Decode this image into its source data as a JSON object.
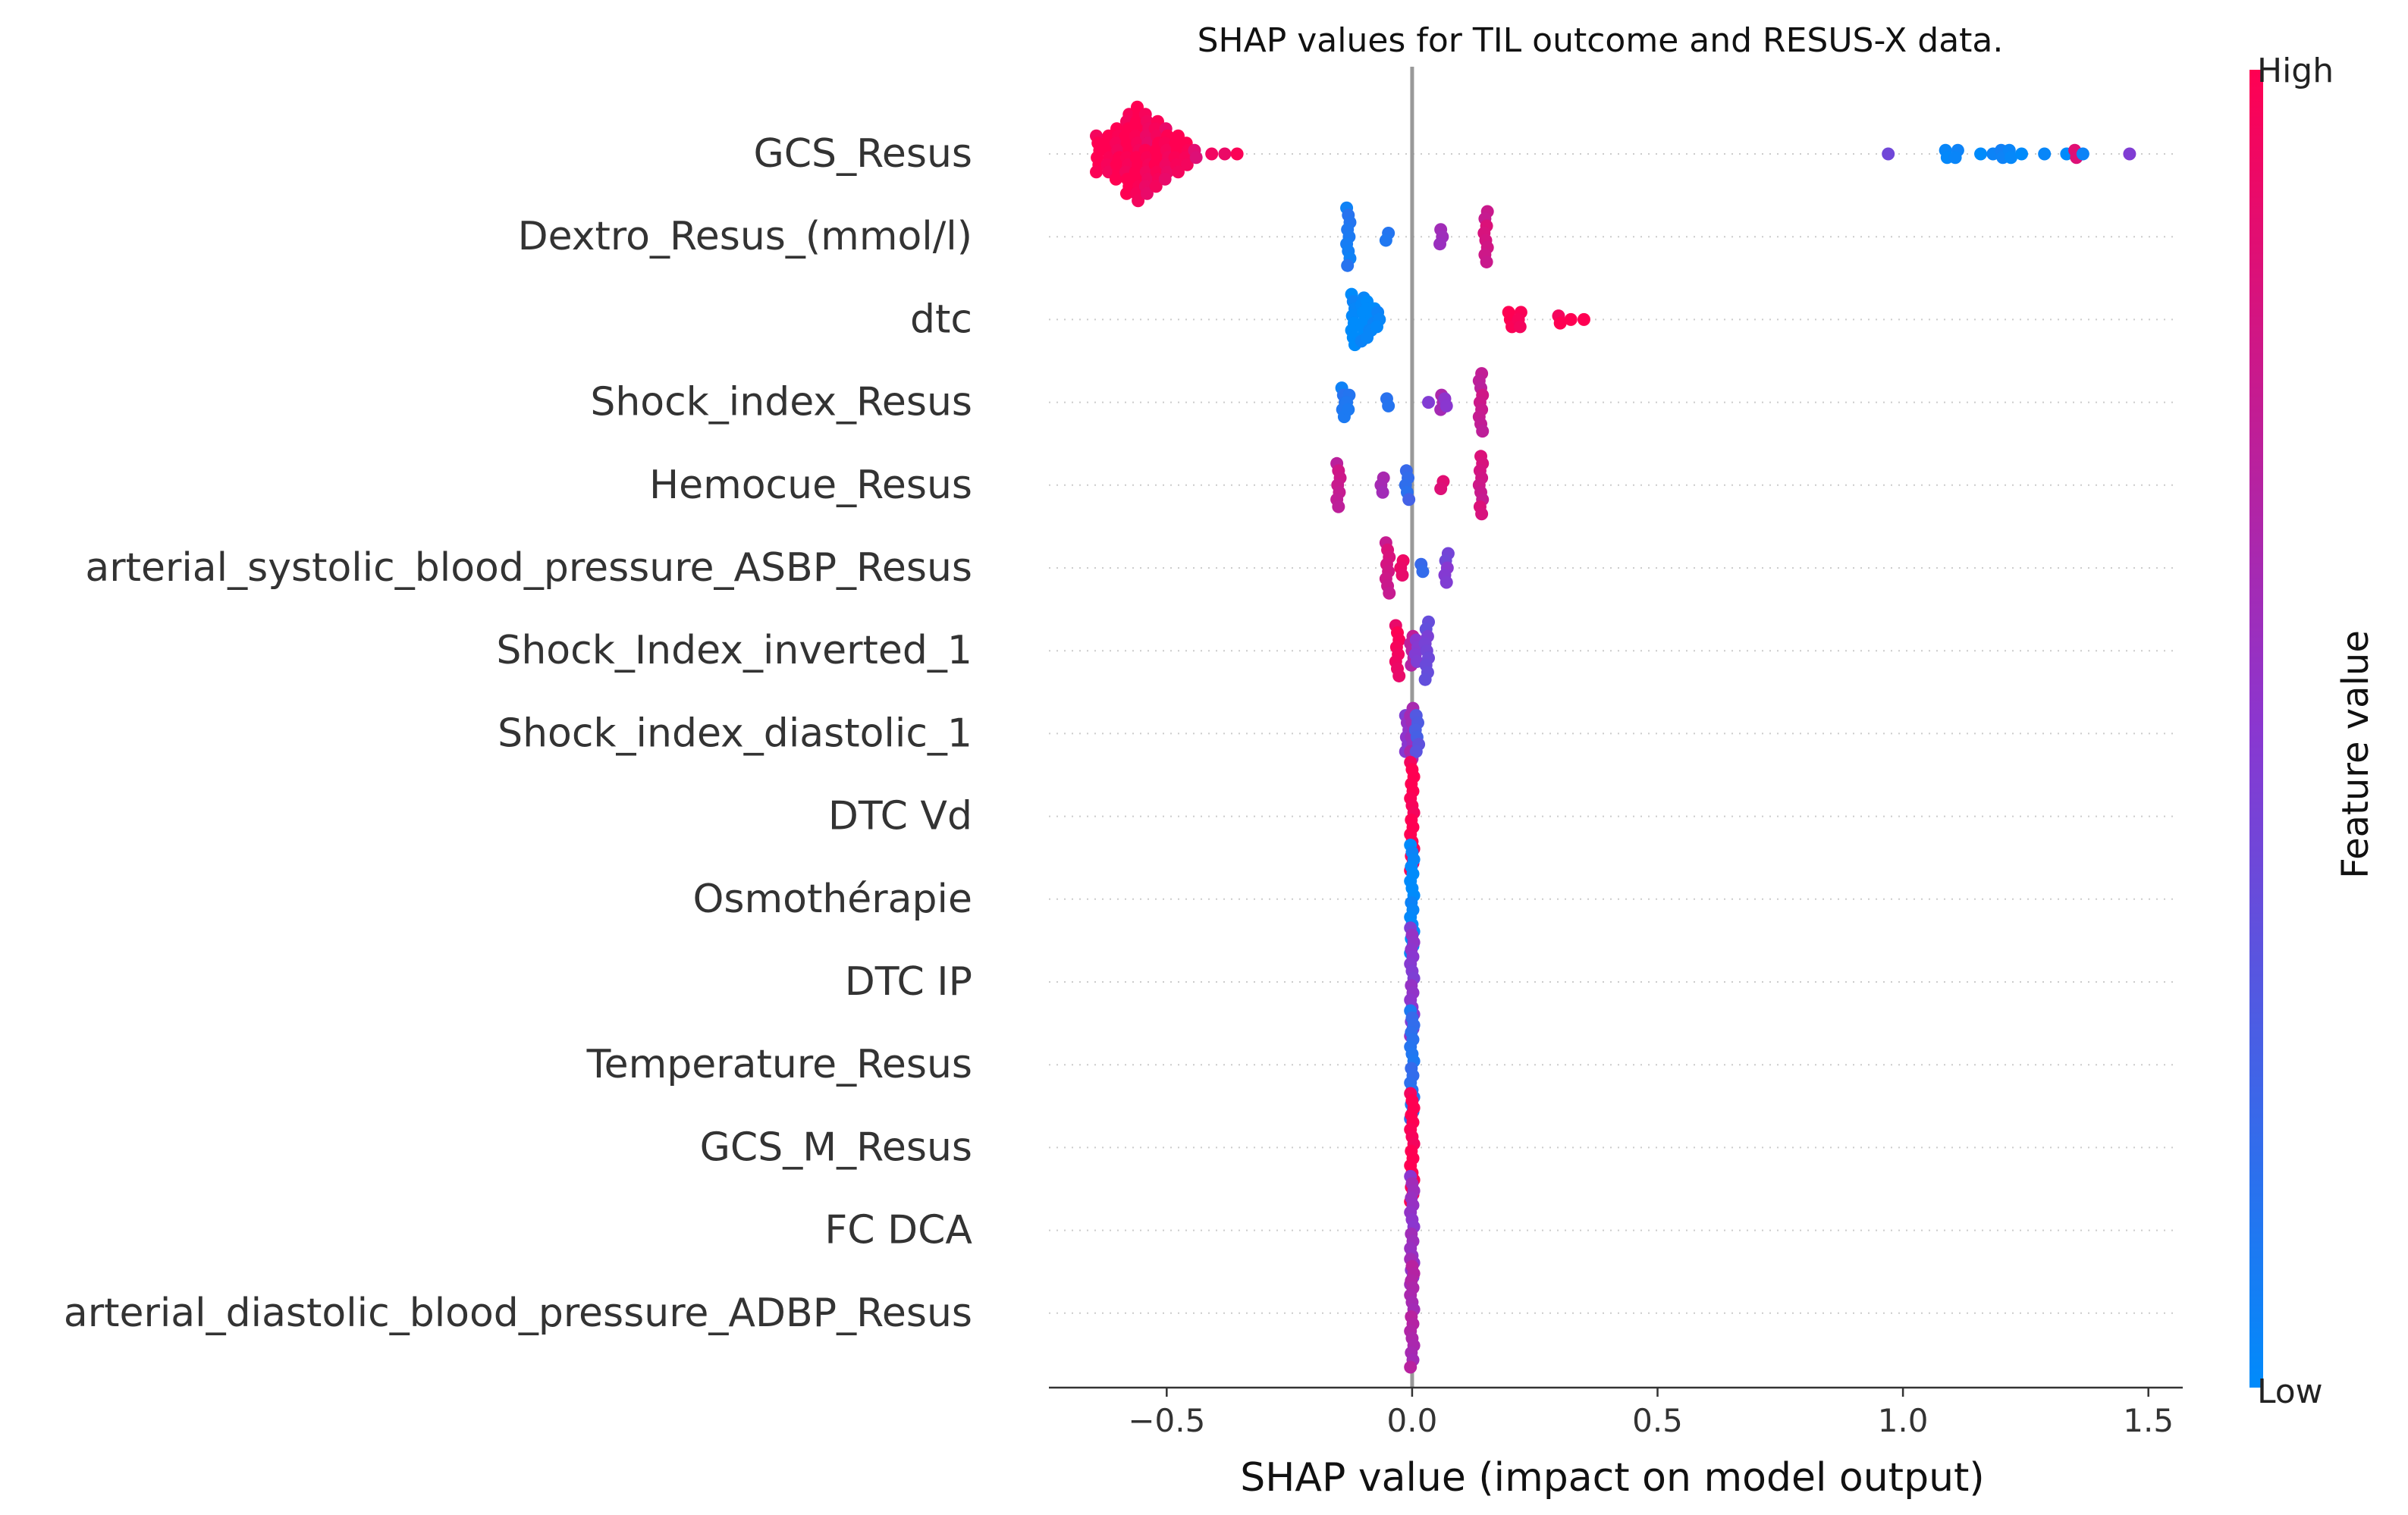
{
  "chart_data": {
    "type": "scatter",
    "subtype": "shap-beeswarm",
    "title": "SHAP values for TIL outcome and RESUS-X data.",
    "xlabel": "SHAP value (impact on model output)",
    "ylabel": "",
    "xlim": [
      -0.74,
      1.57
    ],
    "xticks": [
      -0.5,
      0.0,
      0.5,
      1.0,
      1.5
    ],
    "xtick_labels": [
      "−0.5",
      "0.0",
      "0.5",
      "1.0",
      "1.5"
    ],
    "zero_line": 0.0,
    "grid": "dotted horizontal per feature",
    "colorbar": {
      "label": "Feature value",
      "high_label": "High",
      "low_label": "Low",
      "low_color": "#008bfb",
      "mid_color": "#8a37d0",
      "high_color": "#ff0052"
    },
    "features": [
      {
        "name": "GCS_Resus",
        "groups": [
          {
            "x": -0.64,
            "n": 6,
            "c": 1.0
          },
          {
            "x": -0.62,
            "n": 6,
            "c": 1.0
          },
          {
            "x": -0.6,
            "n": 8,
            "c": 1.0
          },
          {
            "x": -0.58,
            "n": 12,
            "c": 1.0
          },
          {
            "x": -0.56,
            "n": 14,
            "c": 1.0
          },
          {
            "x": -0.54,
            "n": 12,
            "c": 0.95
          },
          {
            "x": -0.52,
            "n": 10,
            "c": 1.0
          },
          {
            "x": -0.5,
            "n": 8,
            "c": 0.95
          },
          {
            "x": -0.48,
            "n": 6,
            "c": 1.0
          },
          {
            "x": -0.46,
            "n": 4,
            "c": 1.0
          },
          {
            "x": -0.44,
            "n": 2,
            "c": 0.9
          },
          {
            "x": -0.41,
            "n": 1,
            "c": 0.9
          },
          {
            "x": -0.38,
            "n": 1,
            "c": 0.9
          },
          {
            "x": -0.36,
            "n": 1,
            "c": 1.0
          },
          {
            "x": 0.97,
            "n": 1,
            "c": 0.45
          },
          {
            "x": 1.09,
            "n": 2,
            "c": 0.0
          },
          {
            "x": 1.11,
            "n": 2,
            "c": 0.05
          },
          {
            "x": 1.16,
            "n": 1,
            "c": 0.0
          },
          {
            "x": 1.18,
            "n": 1,
            "c": 0.0
          },
          {
            "x": 1.2,
            "n": 2,
            "c": 0.05
          },
          {
            "x": 1.22,
            "n": 2,
            "c": 0.05
          },
          {
            "x": 1.24,
            "n": 1,
            "c": 0.0
          },
          {
            "x": 1.29,
            "n": 1,
            "c": 0.0
          },
          {
            "x": 1.33,
            "n": 1,
            "c": 0.0
          },
          {
            "x": 1.35,
            "n": 2,
            "c": 0.9
          },
          {
            "x": 1.37,
            "n": 1,
            "c": 0.0
          },
          {
            "x": 1.46,
            "n": 1,
            "c": 0.45
          }
        ]
      },
      {
        "name": "Dextro_Resus_(mmol/l)",
        "groups": [
          {
            "x": -0.13,
            "n": 9,
            "c": 0.1
          },
          {
            "x": -0.05,
            "n": 2,
            "c": 0.1
          },
          {
            "x": 0.06,
            "n": 3,
            "c": 0.6
          },
          {
            "x": 0.15,
            "n": 8,
            "c": 0.8
          }
        ]
      },
      {
        "name": "dtc",
        "groups": [
          {
            "x": -0.12,
            "n": 8,
            "c": 0.0
          },
          {
            "x": -0.1,
            "n": 7,
            "c": 0.0
          },
          {
            "x": -0.09,
            "n": 6,
            "c": 0.0
          },
          {
            "x": -0.08,
            "n": 4,
            "c": 0.0
          },
          {
            "x": -0.07,
            "n": 3,
            "c": 0.0
          },
          {
            "x": 0.2,
            "n": 3,
            "c": 1.0
          },
          {
            "x": 0.22,
            "n": 3,
            "c": 1.0
          },
          {
            "x": 0.3,
            "n": 2,
            "c": 1.0
          },
          {
            "x": 0.32,
            "n": 1,
            "c": 1.0
          },
          {
            "x": 0.35,
            "n": 1,
            "c": 1.0
          }
        ]
      },
      {
        "name": "Shock_index_Resus",
        "groups": [
          {
            "x": -0.14,
            "n": 5,
            "c": 0.1
          },
          {
            "x": -0.13,
            "n": 3,
            "c": 0.1
          },
          {
            "x": -0.05,
            "n": 2,
            "c": 0.15
          },
          {
            "x": 0.03,
            "n": 1,
            "c": 0.5
          },
          {
            "x": 0.06,
            "n": 3,
            "c": 0.6
          },
          {
            "x": 0.07,
            "n": 2,
            "c": 0.5
          },
          {
            "x": 0.14,
            "n": 9,
            "c": 0.75
          }
        ]
      },
      {
        "name": "Hemocue_Resus",
        "groups": [
          {
            "x": -0.15,
            "n": 7,
            "c": 0.75
          },
          {
            "x": -0.06,
            "n": 3,
            "c": 0.6
          },
          {
            "x": -0.01,
            "n": 5,
            "c": 0.2
          },
          {
            "x": 0.06,
            "n": 2,
            "c": 0.9
          },
          {
            "x": 0.14,
            "n": 9,
            "c": 0.8
          }
        ]
      },
      {
        "name": "arterial_systolic_blood_pressure_ASBP_Resus",
        "groups": [
          {
            "x": -0.05,
            "n": 8,
            "c": 0.8
          },
          {
            "x": -0.02,
            "n": 3,
            "c": 0.9
          },
          {
            "x": 0.02,
            "n": 2,
            "c": 0.2
          },
          {
            "x": 0.07,
            "n": 5,
            "c": 0.45
          }
        ]
      },
      {
        "name": "Shock_Index_inverted_1",
        "groups": [
          {
            "x": -0.03,
            "n": 8,
            "c": 0.95
          },
          {
            "x": 0.0,
            "n": 5,
            "c": 0.7
          },
          {
            "x": 0.01,
            "n": 4,
            "c": 0.5
          },
          {
            "x": 0.03,
            "n": 9,
            "c": 0.4
          }
        ]
      },
      {
        "name": "Shock_index_diastolic_1",
        "groups": [
          {
            "x": -0.01,
            "n": 6,
            "c": 0.5
          },
          {
            "x": 0.0,
            "n": 8,
            "c": 0.6
          },
          {
            "x": 0.01,
            "n": 6,
            "c": 0.3
          }
        ]
      },
      {
        "name": "DTC Vd",
        "groups": [
          {
            "x": 0.0,
            "n": 16,
            "c": 1.0
          }
        ]
      },
      {
        "name": "Osmothérapie",
        "groups": [
          {
            "x": 0.0,
            "n": 16,
            "c": 0.0
          }
        ]
      },
      {
        "name": "DTC IP",
        "groups": [
          {
            "x": 0.0,
            "n": 16,
            "c": 0.5
          }
        ]
      },
      {
        "name": "Temperature_Resus",
        "groups": [
          {
            "x": 0.0,
            "n": 16,
            "c": 0.15
          }
        ]
      },
      {
        "name": "GCS_M_Resus",
        "groups": [
          {
            "x": 0.0,
            "n": 16,
            "c": 1.0
          }
        ]
      },
      {
        "name": "FC  DCA",
        "groups": [
          {
            "x": 0.0,
            "n": 16,
            "c": 0.55
          }
        ]
      },
      {
        "name": "arterial_diastolic_blood_pressure_ADBP_Resus",
        "groups": [
          {
            "x": 0.0,
            "n": 16,
            "c": 0.65
          }
        ]
      }
    ]
  }
}
